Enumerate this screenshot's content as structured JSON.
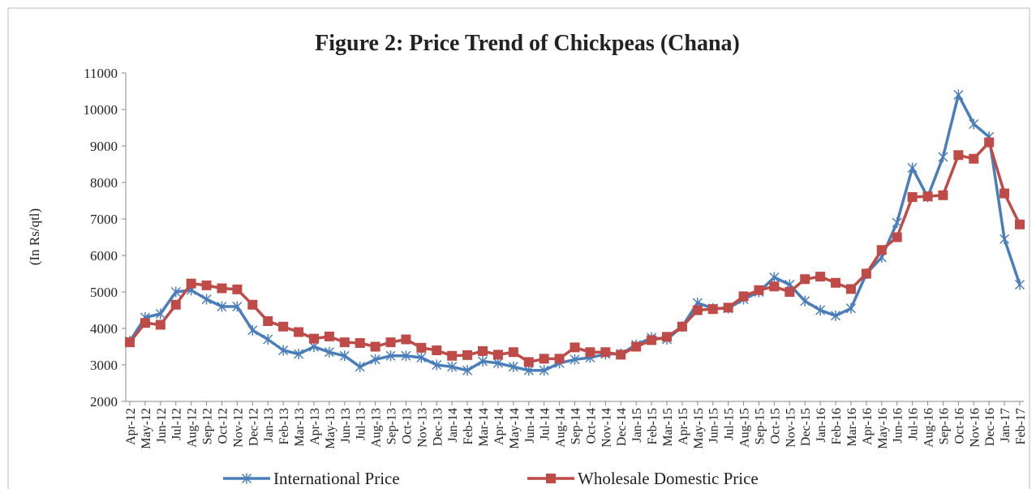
{
  "chart_data": {
    "type": "line",
    "title": "Figure 2: Price Trend of Chickpeas (Chana)",
    "y_label": "(In Rs/qtl)",
    "categories": [
      "Apr-12",
      "May-12",
      "Jun-12",
      "Jul-12",
      "Aug-12",
      "Sep-12",
      "Oct-12",
      "Nov-12",
      "Dec-12",
      "Jan-13",
      "Feb-13",
      "Mar-13",
      "Apr-13",
      "May-13",
      "Jun-13",
      "Jul-13",
      "Aug-13",
      "Sep-13",
      "Oct-13",
      "Nov-13",
      "Dec-13",
      "Jan-14",
      "Feb-14",
      "Mar-14",
      "Apr-14",
      "May-14",
      "Jun-14",
      "Jul-14",
      "Aug-14",
      "Sep-14",
      "Oct-14",
      "Nov-14",
      "Dec-14",
      "Jan-15",
      "Feb-15",
      "Mar-15",
      "Apr-15",
      "May-15",
      "Jun-15",
      "Jul-15",
      "Aug-15",
      "Sep-15",
      "Oct-15",
      "Nov-15",
      "Dec-15",
      "Jan-16",
      "Feb-16",
      "Mar-16",
      "Apr-16",
      "May-16",
      "Jun-16",
      "Jul-16",
      "Aug-16",
      "Sep-16",
      "Oct-16",
      "Nov-16",
      "Dec-16",
      "Jan-17",
      "Feb-17"
    ],
    "series": [
      {
        "name": "International Price",
        "color": "#4a7ebb",
        "marker": "star",
        "values": [
          3650,
          4300,
          4400,
          5000,
          5050,
          4800,
          4600,
          4600,
          3950,
          3700,
          3400,
          3300,
          3500,
          3350,
          3250,
          2950,
          3150,
          3250,
          3250,
          3200,
          3000,
          2950,
          2850,
          3100,
          3050,
          2950,
          2850,
          2850,
          3050,
          3150,
          3200,
          3300,
          3300,
          3550,
          3750,
          3700,
          4050,
          4700,
          4550,
          4550,
          4800,
          5000,
          5400,
          5200,
          4750,
          4500,
          4350,
          4550,
          5500,
          5950,
          6900,
          8400,
          7600,
          8700,
          10400,
          9600,
          9250,
          6450,
          5200
        ]
      },
      {
        "name": "Wholesale Domestic Price",
        "color": "#be4b48",
        "marker": "square",
        "values": [
          3620,
          4150,
          4100,
          4650,
          5230,
          5180,
          5100,
          5070,
          4650,
          4200,
          4050,
          3900,
          3720,
          3780,
          3620,
          3600,
          3500,
          3620,
          3700,
          3470,
          3400,
          3250,
          3270,
          3380,
          3280,
          3350,
          3080,
          3170,
          3170,
          3480,
          3350,
          3350,
          3280,
          3500,
          3680,
          3770,
          4050,
          4500,
          4530,
          4570,
          4880,
          5050,
          5150,
          5000,
          5350,
          5420,
          5250,
          5080,
          5500,
          6150,
          6500,
          7600,
          7620,
          7650,
          8750,
          8650,
          9100,
          7700,
          6850
        ]
      }
    ],
    "ylim": [
      2000,
      11000
    ],
    "yticks": [
      2000,
      3000,
      4000,
      5000,
      6000,
      7000,
      8000,
      9000,
      10000,
      11000
    ],
    "grid": false,
    "legend": "bottom"
  }
}
